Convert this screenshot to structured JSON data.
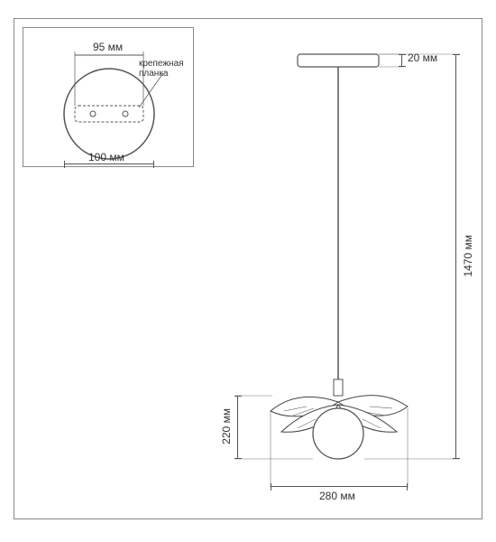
{
  "inset": {
    "plate_width_label": "95 мм",
    "plate_caption": "крепежная\nпланка",
    "circle_width_label": "100 мм"
  },
  "main": {
    "canopy_height_label": "20 мм",
    "total_height_label": "1470 мм",
    "shade_height_label": "220 мм",
    "shade_width_label": "280 мм"
  },
  "colors": {
    "stroke": "#555555",
    "light_stroke": "#888888",
    "text": "#333333",
    "fill_white": "#ffffff"
  },
  "geometry": {
    "inset_circle_r": 50,
    "inset_plate_w": 76,
    "inset_plate_h": 18
  }
}
